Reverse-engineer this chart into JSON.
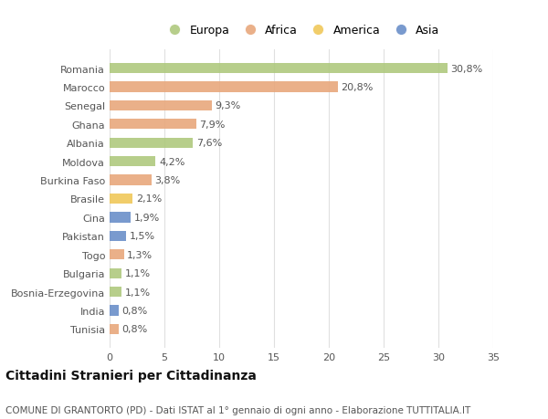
{
  "countries": [
    "Romania",
    "Marocco",
    "Senegal",
    "Ghana",
    "Albania",
    "Moldova",
    "Burkina Faso",
    "Brasile",
    "Cina",
    "Pakistan",
    "Togo",
    "Bulgaria",
    "Bosnia-Erzegovina",
    "India",
    "Tunisia"
  ],
  "values": [
    30.8,
    20.8,
    9.3,
    7.9,
    7.6,
    4.2,
    3.8,
    2.1,
    1.9,
    1.5,
    1.3,
    1.1,
    1.1,
    0.8,
    0.8
  ],
  "labels": [
    "30,8%",
    "20,8%",
    "9,3%",
    "7,9%",
    "7,6%",
    "4,2%",
    "3,8%",
    "2,1%",
    "1,9%",
    "1,5%",
    "1,3%",
    "1,1%",
    "1,1%",
    "0,8%",
    "0,8%"
  ],
  "continents": [
    "Europa",
    "Africa",
    "Africa",
    "Africa",
    "Europa",
    "Europa",
    "Africa",
    "America",
    "Asia",
    "Asia",
    "Africa",
    "Europa",
    "Europa",
    "Asia",
    "Africa"
  ],
  "continent_colors": {
    "Europa": "#afc97e",
    "Africa": "#e8a87c",
    "America": "#f0c85a",
    "Asia": "#6b8fc9"
  },
  "legend_order": [
    "Europa",
    "Africa",
    "America",
    "Asia"
  ],
  "title": "Cittadini Stranieri per Cittadinanza",
  "subtitle": "COMUNE DI GRANTORTO (PD) - Dati ISTAT al 1° gennaio di ogni anno - Elaborazione TUTTITALIA.IT",
  "xlim": [
    0,
    35
  ],
  "xticks": [
    0,
    5,
    10,
    15,
    20,
    25,
    30,
    35
  ],
  "background_color": "#ffffff",
  "grid_color": "#e0e0e0",
  "bar_height": 0.55,
  "label_fontsize": 8,
  "tick_fontsize": 8,
  "title_fontsize": 10,
  "subtitle_fontsize": 7.5
}
